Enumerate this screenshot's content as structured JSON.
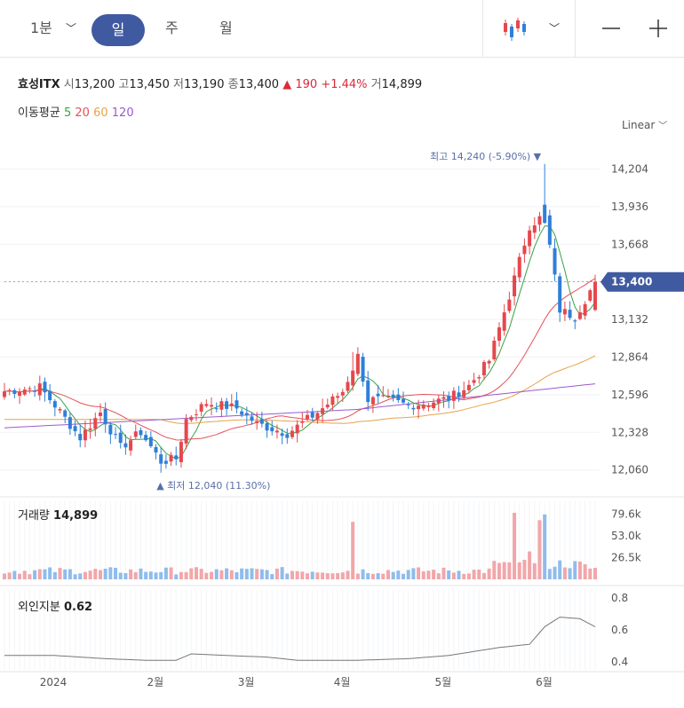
{
  "toolbar": {
    "interval": "1분",
    "tabs": [
      {
        "label": "일",
        "active": true
      },
      {
        "label": "주",
        "active": false
      },
      {
        "label": "월",
        "active": false
      }
    ],
    "chart_type_icon": "candlestick-icon",
    "zoom_out_icon": "minus-icon",
    "zoom_in_icon": "plus-icon"
  },
  "quote": {
    "name": "효성ITX",
    "open_label": "시",
    "open": "13,200",
    "high_label": "고",
    "high": "13,450",
    "low_label": "저",
    "low": "13,190",
    "close_label": "종",
    "close": "13,400",
    "change": "▲ 190",
    "change_pct": "+1.44%",
    "volume_label": "거",
    "volume": "14,899"
  },
  "moving_average": {
    "label": "이동평균",
    "periods": [
      {
        "period": "5",
        "color": "#3aa14a"
      },
      {
        "period": "20",
        "color": "#e5505a"
      },
      {
        "period": "60",
        "color": "#e8a24a"
      },
      {
        "period": "120",
        "color": "#9b59d0"
      }
    ]
  },
  "scale_mode": "Linear",
  "colors": {
    "up": "#e5484d",
    "down": "#2f7fd8",
    "badge": "#3f5aa0"
  },
  "chart_data": {
    "type": "candlestick",
    "price_axis": {
      "ticks": [
        "14,204",
        "13,936",
        "13,668",
        "13,400",
        "13,132",
        "12,864",
        "12,596",
        "12,328",
        "12,060"
      ],
      "ylim": [
        11900,
        14460
      ],
      "current": "13,400"
    },
    "x_labels": [
      "2024",
      "2월",
      "3월",
      "4월",
      "5월",
      "6월"
    ],
    "annotations": {
      "high": "최고 14,240 (-5.90%) ▼",
      "low": "▲ 최저 12,040 (11.30%)"
    },
    "volume": {
      "label": "거래량",
      "value": "14,899",
      "ticks": [
        "79.6k",
        "53.0k",
        "26.5k"
      ],
      "ylim": [
        0,
        95000
      ]
    },
    "foreign": {
      "label": "외인지분",
      "value": "0.62",
      "ticks": [
        "0.8",
        "0.6",
        "0.4"
      ],
      "ylim": [
        0.35,
        0.85
      ]
    }
  }
}
